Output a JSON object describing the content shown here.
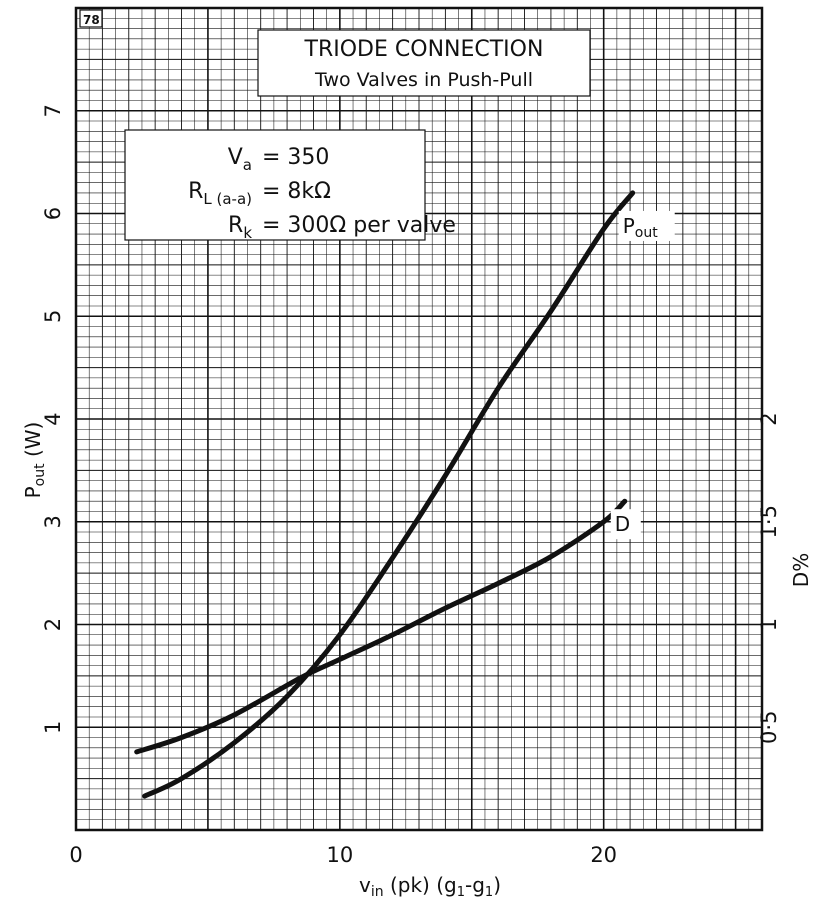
{
  "chart_data": {
    "type": "line",
    "sheet_number": "78",
    "title": "TRIODE CONNECTION",
    "subtitle": "Two Valves in Push-Pull",
    "conditions": [
      {
        "symbol": "V",
        "sub": "a",
        "value": "= 350"
      },
      {
        "symbol": "R",
        "sub": "L (a-a)",
        "value": "= 8kΩ"
      },
      {
        "symbol": "R",
        "sub": "k",
        "value": "= 300Ω per valve"
      }
    ],
    "xlabel": {
      "main": "v",
      "sub": "in",
      "rest": " (pk) (g",
      "sub2": "1",
      "mid": "-g",
      "sub3": "1",
      "end": ")"
    },
    "ylabel_left": {
      "main": "P",
      "sub": "out",
      "rest": " (W)"
    },
    "ylabel_right": "D%",
    "xlim": [
      0,
      26
    ],
    "ylim_left": [
      0,
      8
    ],
    "ylim_right": [
      0,
      4
    ],
    "x_ticks": [
      "0",
      "10",
      "20"
    ],
    "y_left_ticks": [
      "1",
      "2",
      "3",
      "4",
      "5",
      "6",
      "7"
    ],
    "y_right_ticks": [
      "0·5",
      "1",
      "1·5",
      "2"
    ],
    "grid": true,
    "series": [
      {
        "name": "Pout",
        "axis": "left",
        "x": [
          2.6,
          4,
          6,
          8,
          10,
          12,
          14,
          16,
          18,
          20,
          21.1
        ],
        "y": [
          0.33,
          0.5,
          0.85,
          1.3,
          1.9,
          2.65,
          3.45,
          4.3,
          5.05,
          5.85,
          6.2
        ]
      },
      {
        "name": "D",
        "axis": "right",
        "x": [
          2.3,
          4,
          6,
          8.5,
          10,
          12,
          14,
          16,
          18,
          20,
          20.8
        ],
        "y": [
          0.38,
          0.45,
          0.56,
          0.74,
          0.83,
          0.95,
          1.08,
          1.2,
          1.33,
          1.5,
          1.6
        ]
      }
    ]
  }
}
